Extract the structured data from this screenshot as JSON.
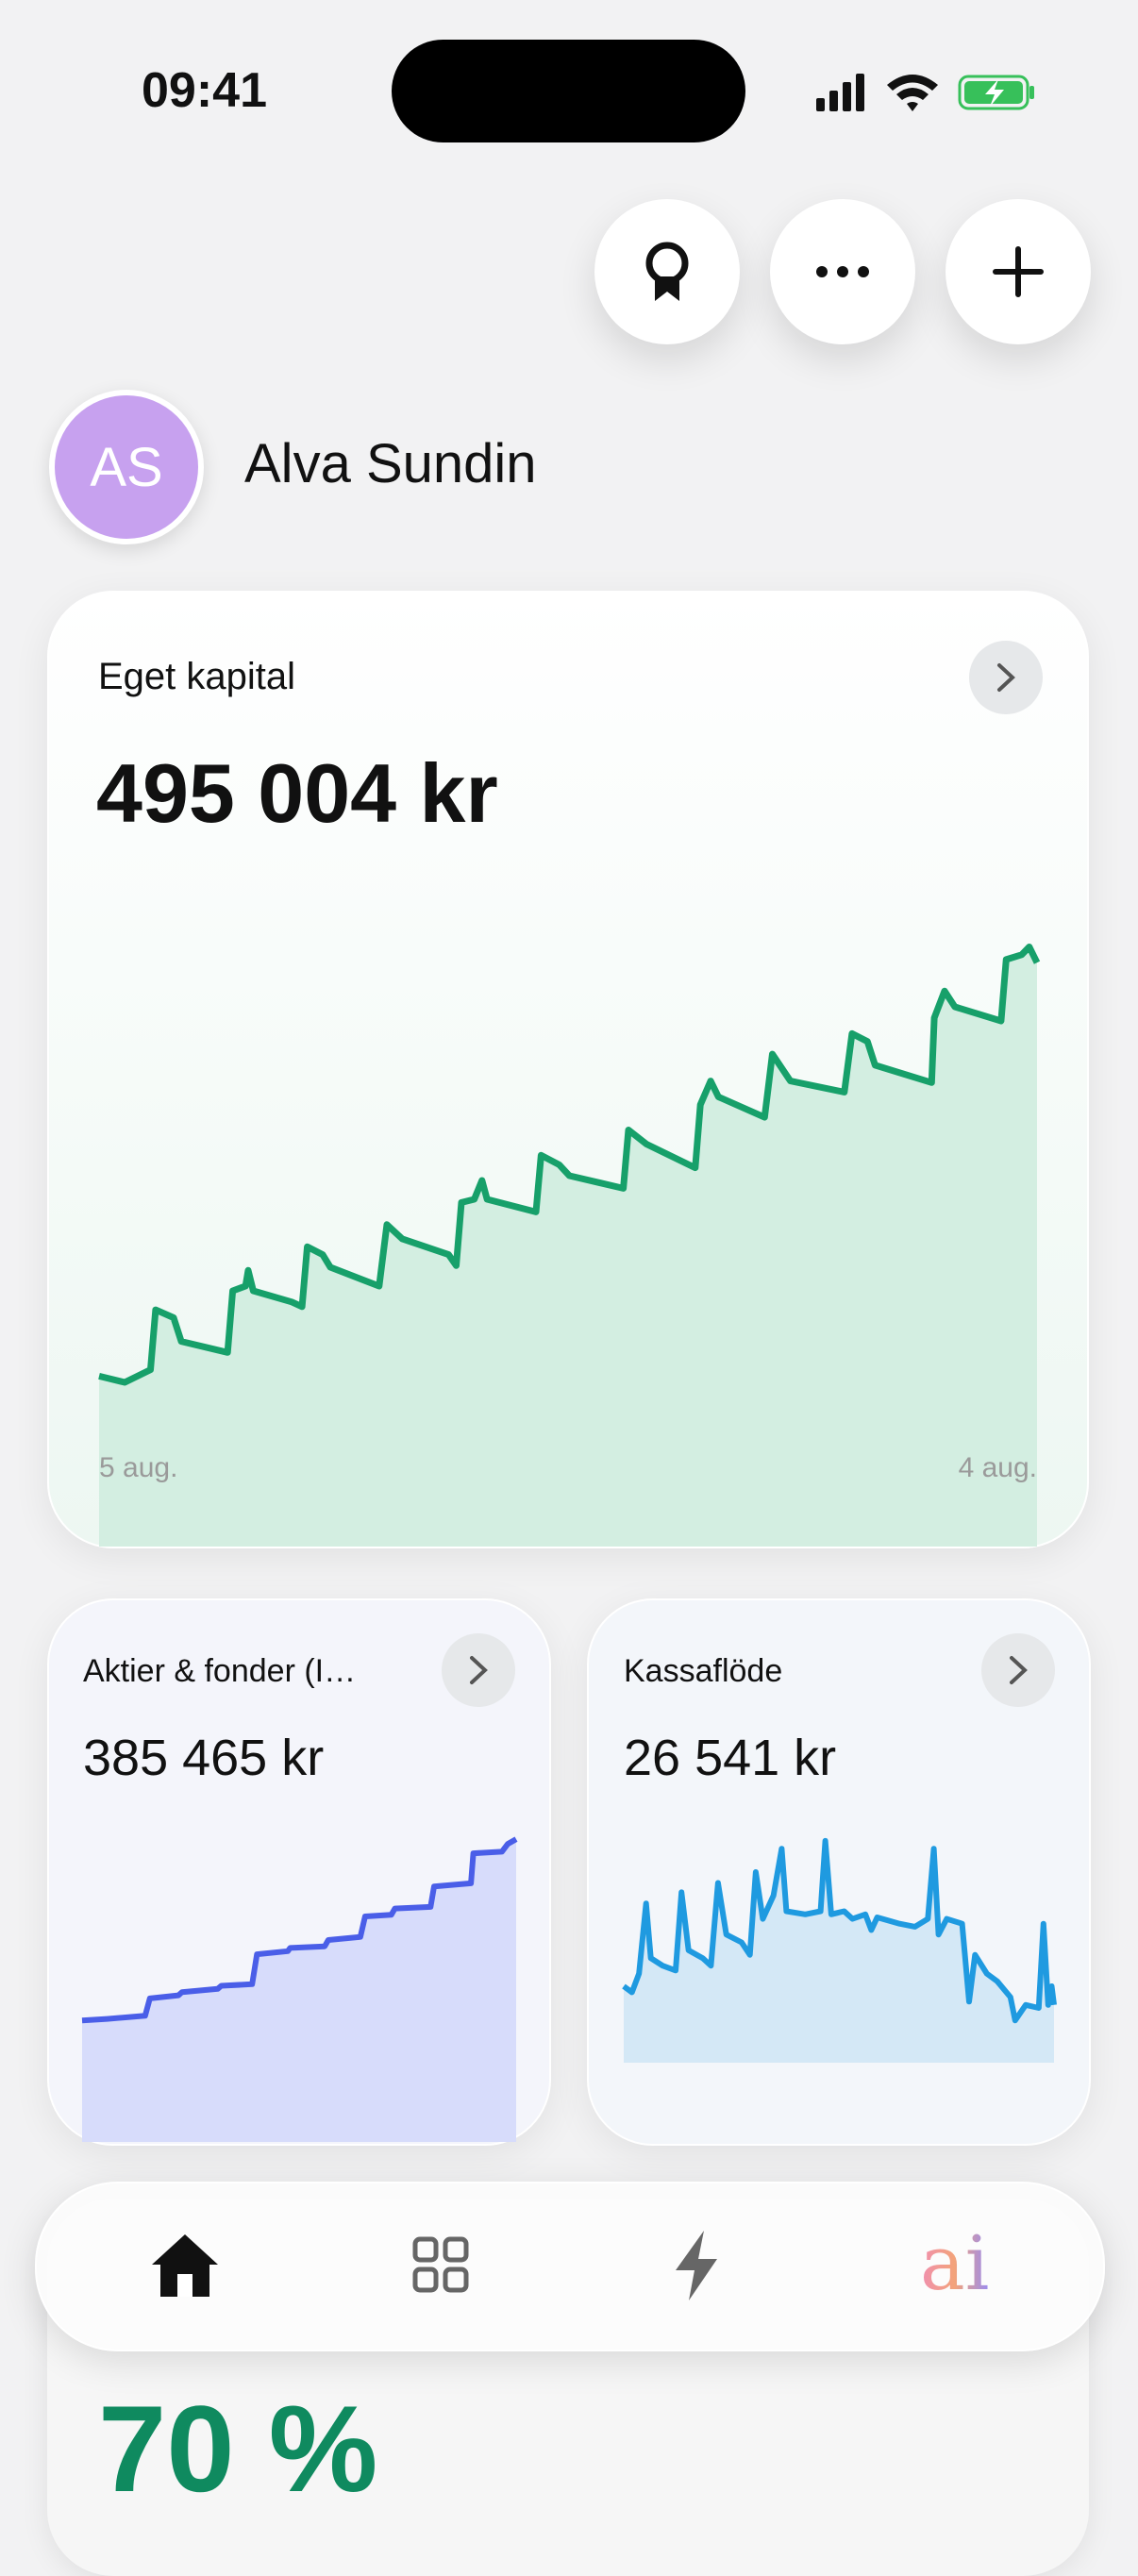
{
  "status_bar": {
    "time": "09:41"
  },
  "profile": {
    "initials": "AS",
    "name": "Alva Sundin"
  },
  "chart_data": [
    {
      "type": "line",
      "title": "Eget kapital",
      "headline": "495 004 kr",
      "color": "#17a06a",
      "area_color": "#d3eee1",
      "x": [
        0,
        10,
        20,
        22,
        29,
        32,
        50,
        52,
        57,
        58,
        60,
        75,
        79,
        81,
        87,
        90,
        109,
        112,
        118,
        136,
        139,
        141,
        146,
        149,
        151,
        170,
        172,
        179,
        183,
        204,
        206,
        213,
        232,
        234,
        238,
        241,
        259,
        262,
        269,
        290,
        293,
        299,
        302,
        324,
        325,
        329,
        333,
        351,
        353,
        359,
        362,
        365
      ],
      "values": [
        144500,
        139200,
        149900,
        200700,
        194000,
        173900,
        164600,
        216800,
        220800,
        234200,
        216800,
        207400,
        203400,
        254200,
        247500,
        236800,
        220800,
        273000,
        260900,
        247500,
        238200,
        291700,
        294400,
        310400,
        294400,
        283700,
        331800,
        323800,
        314400,
        303700,
        353200,
        341200,
        321100,
        374600,
        394700,
        381300,
        363900,
        417500,
        394700,
        385300,
        434900,
        428200,
        408100,
        393400,
        448200,
        471000,
        457600,
        445600,
        497700,
        501800,
        508400,
        495004
      ],
      "xlim": [
        0,
        365
      ],
      "ylim": [
        0,
        500000
      ],
      "xticks": [
        {
          "value": 0,
          "label": "5 aug."
        },
        {
          "value": 365,
          "label": "4 aug."
        }
      ]
    },
    {
      "type": "line",
      "title": "Aktier & fonder (I…",
      "headline": "385 465 kr",
      "color": "#4a5ee8",
      "area_color": "#d7dcfb",
      "x": [
        0,
        21,
        53,
        57,
        81,
        84,
        114,
        117,
        143,
        147,
        173,
        175,
        204,
        207,
        234,
        238,
        260,
        263,
        293,
        296,
        327,
        329,
        353,
        358,
        365
      ],
      "values": [
        154600,
        156600,
        160600,
        182700,
        186700,
        190800,
        194800,
        198800,
        200800,
        238900,
        242900,
        247000,
        249000,
        257000,
        261000,
        287100,
        289200,
        297200,
        299200,
        325300,
        329300,
        367500,
        369500,
        379500,
        385465
      ],
      "xlim": [
        0,
        365
      ],
      "ylim": [
        0,
        400000
      ]
    },
    {
      "type": "line",
      "title": "Kassaflöde",
      "headline": "26 541 kr",
      "color": "#1f9ae0",
      "area_color": "#d4e8f6",
      "x": [
        0,
        7,
        13,
        19,
        23,
        33,
        44,
        49,
        55,
        67,
        74,
        80,
        87,
        100,
        107,
        112,
        118,
        127,
        134,
        138,
        154,
        167,
        171,
        176,
        187,
        194,
        205,
        210,
        215,
        234,
        247,
        258,
        263,
        267,
        274,
        287,
        293,
        298,
        308,
        317,
        328,
        332,
        341,
        352,
        356,
        360,
        363,
        365
      ],
      "values": [
        35100,
        32300,
        40900,
        73100,
        48000,
        44500,
        42300,
        78200,
        51600,
        48000,
        44500,
        82500,
        58800,
        55200,
        49500,
        87500,
        66000,
        76700,
        98200,
        69500,
        68100,
        69500,
        101800,
        68100,
        69500,
        66000,
        68100,
        60900,
        66700,
        63800,
        62400,
        66000,
        98200,
        58800,
        66000,
        63800,
        28000,
        49500,
        40900,
        37300,
        30100,
        19400,
        26500,
        25100,
        63800,
        26500,
        35100,
        26541
      ],
      "xlim": [
        0,
        365
      ],
      "ylim": [
        0,
        110000
      ]
    }
  ],
  "summary_card": {
    "value": "70 %"
  },
  "nav": {
    "ai": "ai"
  }
}
